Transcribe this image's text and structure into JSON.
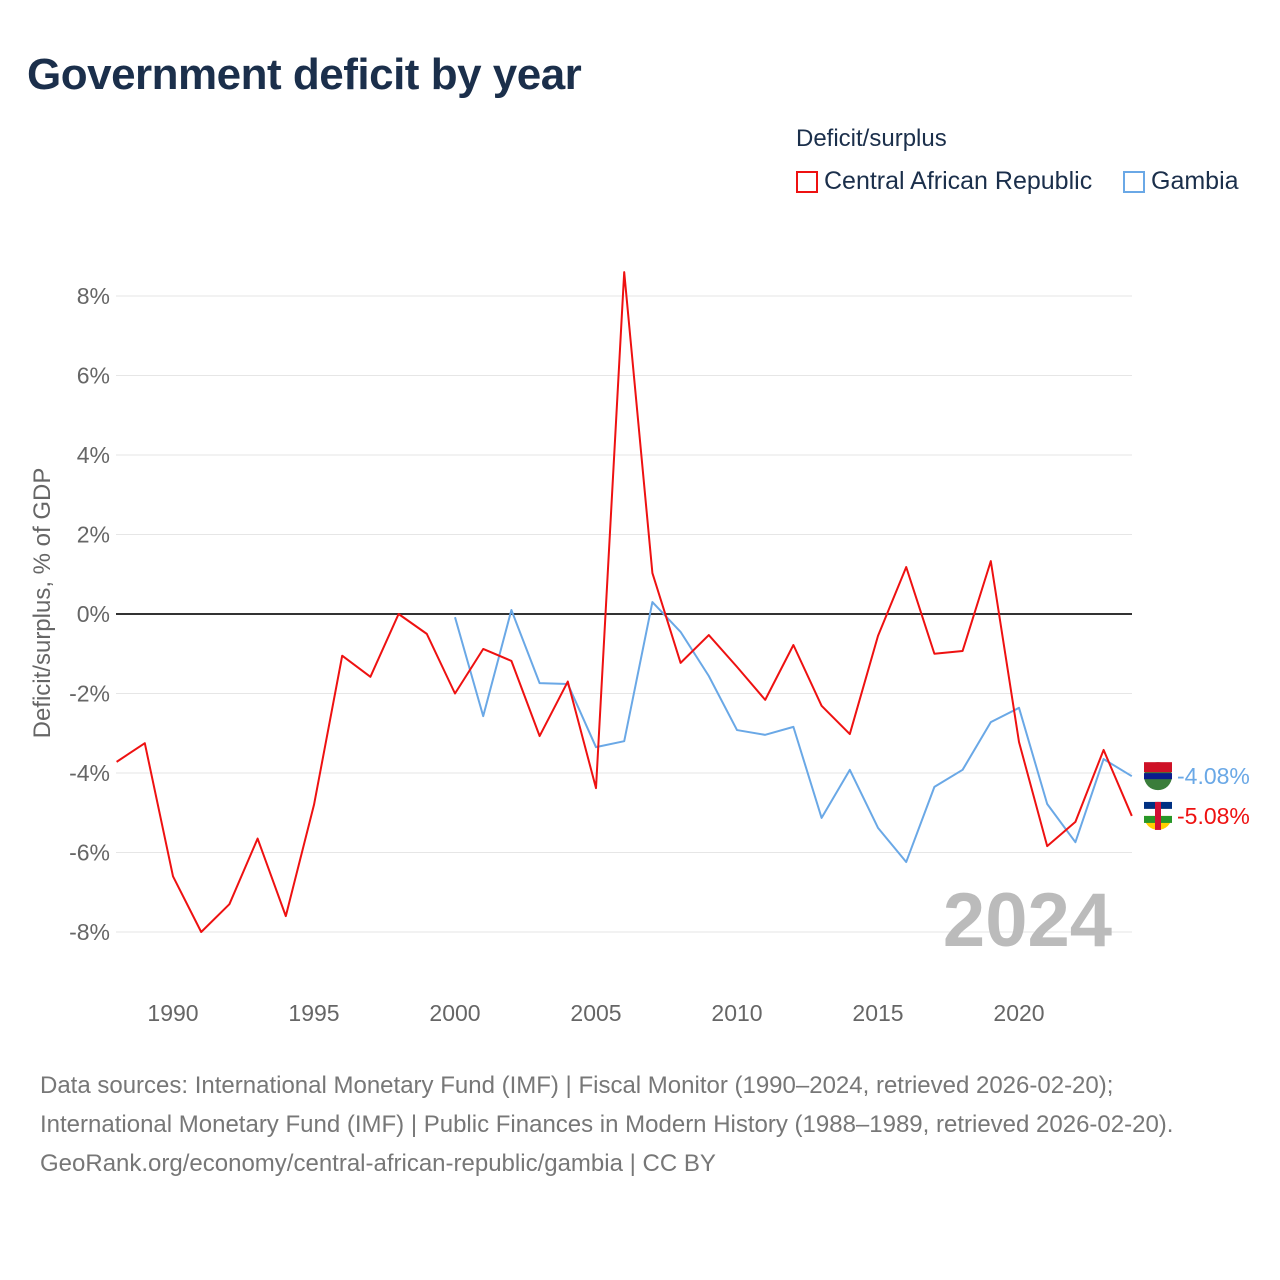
{
  "title": "Government deficit by year",
  "legend": {
    "title": "Deficit/surplus",
    "items": [
      {
        "label": "Central African Republic",
        "color": "#ee1111"
      },
      {
        "label": "Gambia",
        "color": "#6aa8e6"
      }
    ]
  },
  "chart_data": {
    "type": "line",
    "title": "Government deficit by year",
    "xlabel": "",
    "ylabel": "Deficit/surplus, % of GDP",
    "xlim": [
      1988,
      2024
    ],
    "ylim": [
      -9,
      8.8
    ],
    "x_ticks": [
      1990,
      1995,
      2000,
      2005,
      2010,
      2015,
      2020
    ],
    "y_ticks": [
      8,
      6,
      4,
      2,
      0,
      -2,
      -4,
      -6,
      -8
    ],
    "y_tick_labels": [
      "8%",
      "6%",
      "4%",
      "2%",
      "0%",
      "-2%",
      "-4%",
      "-6%",
      "-8%"
    ],
    "x_tick_labels": [
      "1990",
      "1995",
      "2000",
      "2005",
      "2010",
      "2015",
      "2020"
    ],
    "grid": true,
    "year_watermark": "2024",
    "series": [
      {
        "name": "Central African Republic",
        "color": "#ee1111",
        "end_label": "-5.08%",
        "x": [
          1988,
          1989,
          1990,
          1991,
          1992,
          1993,
          1994,
          1995,
          1996,
          1997,
          1998,
          1999,
          2000,
          2001,
          2002,
          2003,
          2004,
          2005,
          2006,
          2007,
          2008,
          2009,
          2010,
          2011,
          2012,
          2013,
          2014,
          2015,
          2016,
          2017,
          2018,
          2019,
          2020,
          2021,
          2022,
          2023,
          2024
        ],
        "values": [
          -3.72,
          -3.25,
          -6.6,
          -8.0,
          -7.3,
          -5.65,
          -7.6,
          -4.8,
          -1.05,
          -1.58,
          0.0,
          -0.5,
          -2.0,
          -0.88,
          -1.18,
          -3.07,
          -1.7,
          -4.38,
          8.6,
          1.03,
          -1.23,
          -0.53,
          -1.33,
          -2.16,
          -0.78,
          -2.31,
          -3.02,
          -0.55,
          1.18,
          -1.0,
          -0.93,
          1.33,
          -3.22,
          -5.84,
          -5.23,
          -3.42,
          -5.08
        ]
      },
      {
        "name": "Gambia",
        "color": "#6aa8e6",
        "end_label": "-4.08%",
        "x": [
          2000,
          2001,
          2002,
          2003,
          2004,
          2005,
          2006,
          2007,
          2008,
          2009,
          2010,
          2011,
          2012,
          2013,
          2014,
          2015,
          2016,
          2017,
          2018,
          2019,
          2020,
          2021,
          2022,
          2023,
          2024
        ],
        "values": [
          -0.08,
          -2.57,
          0.1,
          -1.74,
          -1.76,
          -3.35,
          -3.2,
          0.3,
          -0.45,
          -1.56,
          -2.92,
          -3.04,
          -2.84,
          -5.13,
          -3.92,
          -5.38,
          -6.24,
          -4.35,
          -3.92,
          -2.72,
          -2.36,
          -4.78,
          -5.74,
          -3.65,
          -4.08
        ]
      }
    ]
  },
  "footer": {
    "sources": "Data sources: International Monetary Fund (IMF) | Fiscal Monitor (1990–2024, retrieved 2026-02-20); International Monetary Fund (IMF) | Public Finances in Modern History (1988–1989, retrieved 2026-02-20).",
    "credit": "GeoRank.org/economy/central-african-republic/gambia | CC BY"
  }
}
